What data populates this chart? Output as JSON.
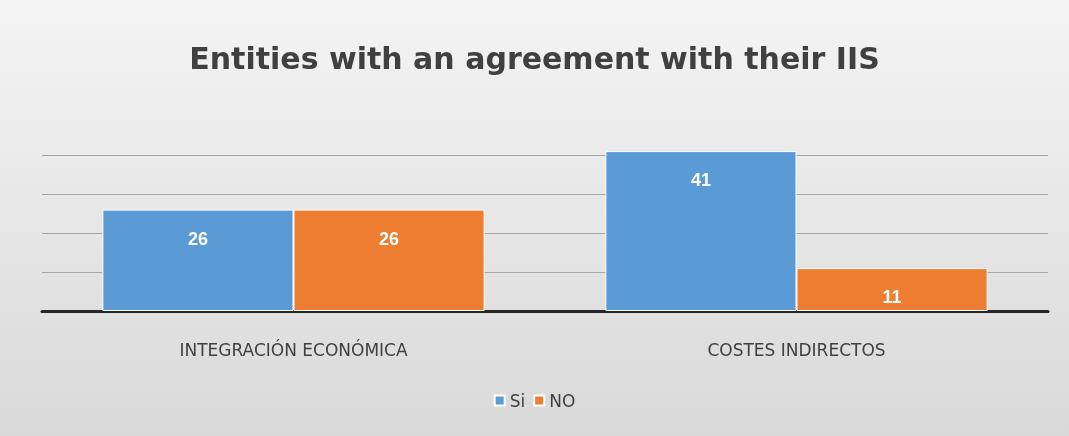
{
  "chart_data": {
    "type": "bar",
    "title": "Entities with an agreement with their IIS",
    "categories": [
      "INTEGRACIÓN ECONÓMICA",
      "COSTES INDIRECTOS"
    ],
    "series": [
      {
        "name": "Si",
        "color": "#5b9bd5",
        "values": [
          26,
          41
        ]
      },
      {
        "name": "NO",
        "color": "#ed7d31",
        "values": [
          26,
          11
        ]
      }
    ],
    "yticks": [
      {
        "value": 0,
        "label": null
      },
      {
        "value": 10,
        "label": null
      },
      {
        "value": 20,
        "label": null
      },
      {
        "value": 30,
        "label": null
      },
      {
        "value": 40,
        "label": null
      }
    ],
    "tick_labels": "x",
    "grid": "y",
    "data_labels": true,
    "legend": "bottom"
  }
}
